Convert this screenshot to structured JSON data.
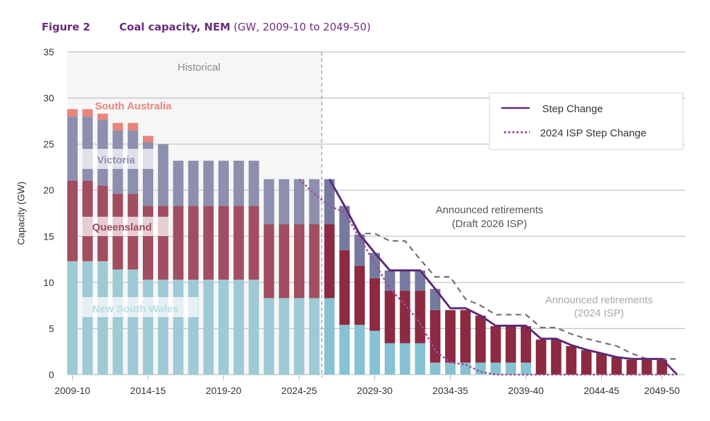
{
  "figure_label": "Figure 2",
  "title": "Coal capacity, NEM",
  "subtitle": "(GW, 2009-10 to 2049-50)",
  "chart_data": {
    "type": "bar",
    "stacked": true,
    "ylabel": "Capacity (GW)",
    "xlabel": "",
    "ylim": [
      0,
      35
    ],
    "yticks": [
      0,
      5,
      10,
      15,
      20,
      25,
      30,
      35
    ],
    "grid": true,
    "legend_position": "top-right",
    "categories": [
      "2009-10",
      "2010-11",
      "2011-12",
      "2012-13",
      "2013-14",
      "2014-15",
      "2015-16",
      "2016-17",
      "2017-18",
      "2018-19",
      "2019-20",
      "2020-21",
      "2021-22",
      "2022-23",
      "2023-24",
      "2024-25",
      "2025-26",
      "2026-27",
      "2027-28",
      "2028-29",
      "2029-30",
      "2030-31",
      "2031-32",
      "2032-33",
      "2033-34",
      "2034-35",
      "2035-36",
      "2036-37",
      "2037-38",
      "2038-39",
      "2039-40",
      "2040-41",
      "2041-42",
      "2042-43",
      "2043-44",
      "2044-45",
      "2045-46",
      "2046-47",
      "2047-48",
      "2048-49",
      "2049-50"
    ],
    "xtick_labels": [
      "2009-10",
      "2014-15",
      "2019-20",
      "2024-25",
      "2029-30",
      "2034-35",
      "2039-40",
      "2044-45",
      "2049-50"
    ],
    "historical_label": "Historical",
    "historical_through": "2025-26",
    "series": [
      {
        "name": "New South Wales",
        "color": "#9ecad6",
        "projected_color": "#86c2d3",
        "values": [
          12.3,
          12.3,
          12.3,
          11.4,
          11.4,
          10.3,
          10.3,
          10.3,
          10.3,
          10.3,
          10.3,
          10.3,
          10.3,
          8.3,
          8.3,
          8.3,
          8.3,
          8.3,
          5.4,
          5.4,
          4.75,
          3.4,
          3.4,
          3.4,
          1.3,
          1.3,
          1.3,
          1.3,
          1.3,
          1.3,
          1.3,
          0,
          0,
          0,
          0,
          0,
          0,
          0,
          0,
          0,
          0
        ]
      },
      {
        "name": "Queensland",
        "color": "#a04e60",
        "projected_color": "#8b2a40",
        "values": [
          8.75,
          8.75,
          8.2,
          8.2,
          8.2,
          8.0,
          8.0,
          8.0,
          8.0,
          8.0,
          8.0,
          8.0,
          8.0,
          8.0,
          8.0,
          8.0,
          8.0,
          8.0,
          8.1,
          6.4,
          5.7,
          5.7,
          5.7,
          5.7,
          5.7,
          5.7,
          5.7,
          5.1,
          3.95,
          3.95,
          3.95,
          3.8,
          3.8,
          3.1,
          2.65,
          2.3,
          1.9,
          1.6,
          1.6,
          1.6,
          0
        ]
      },
      {
        "name": "Victoria",
        "color": "#8c8fae",
        "projected_color": "#7679a0",
        "values": [
          6.95,
          6.95,
          7.1,
          6.9,
          6.9,
          6.9,
          6.7,
          4.9,
          4.9,
          4.9,
          4.9,
          4.9,
          4.9,
          4.9,
          4.9,
          4.9,
          4.9,
          4.9,
          4.8,
          3.4,
          2.75,
          2.2,
          2.2,
          2.2,
          2.3,
          0,
          0,
          0,
          0,
          0,
          0,
          0,
          0,
          0,
          0,
          0,
          0,
          0,
          0,
          0,
          0
        ]
      },
      {
        "name": "South Australia",
        "color": "#e8857a",
        "projected_color": "#e8857a",
        "values": [
          0.8,
          0.8,
          0.7,
          0.8,
          0.8,
          0.7,
          0,
          0,
          0,
          0,
          0,
          0,
          0,
          0,
          0,
          0,
          0,
          0,
          0,
          0,
          0,
          0,
          0,
          0,
          0,
          0,
          0,
          0,
          0,
          0,
          0,
          0,
          0,
          0,
          0,
          0,
          0,
          0,
          0,
          0,
          0
        ]
      }
    ],
    "lines": [
      {
        "name": "Step Change",
        "style": "solid",
        "color": "#5c2a78",
        "start": "2026-27",
        "values": [
          21.2,
          18.3,
          15.2,
          13.2,
          11.3,
          11.3,
          11.3,
          9.3,
          7.2,
          7.2,
          6.4,
          5.3,
          5.3,
          5.3,
          3.9,
          3.9,
          3.2,
          2.7,
          2.3,
          1.9,
          1.7,
          1.7,
          1.7,
          0
        ]
      },
      {
        "name": "2024 ISP Step Change",
        "style": "dotted",
        "color": "#a04c9c",
        "start": "2024-25",
        "values": [
          21.2,
          19.6,
          18.3,
          17.6,
          14.8,
          12.1,
          9.3,
          7.6,
          5.6,
          2.6,
          1.3,
          1.1,
          0.3,
          0,
          0,
          0,
          0,
          0,
          0,
          0,
          0,
          0,
          0,
          0,
          0,
          0
        ]
      },
      {
        "style": "dashed",
        "color": "#6e6e78",
        "start": "2026-27",
        "values": [
          21.2,
          18.3,
          15.3,
          15.3,
          14.5,
          14.5,
          12.5,
          10.6,
          10.6,
          8.2,
          7.5,
          6.5,
          6.5,
          6.5,
          5.1,
          5.1,
          4.4,
          3.9,
          3.5,
          3.1,
          2.3,
          1.7,
          1.7,
          1.7
        ]
      }
    ],
    "annotations": {
      "draft_2026_line1": "Announced retirements",
      "draft_2026_line2": "(Draft 2026 ISP)",
      "isp_2024_line1": "Announced retirements",
      "isp_2024_line2": "(2024 ISP)"
    }
  }
}
